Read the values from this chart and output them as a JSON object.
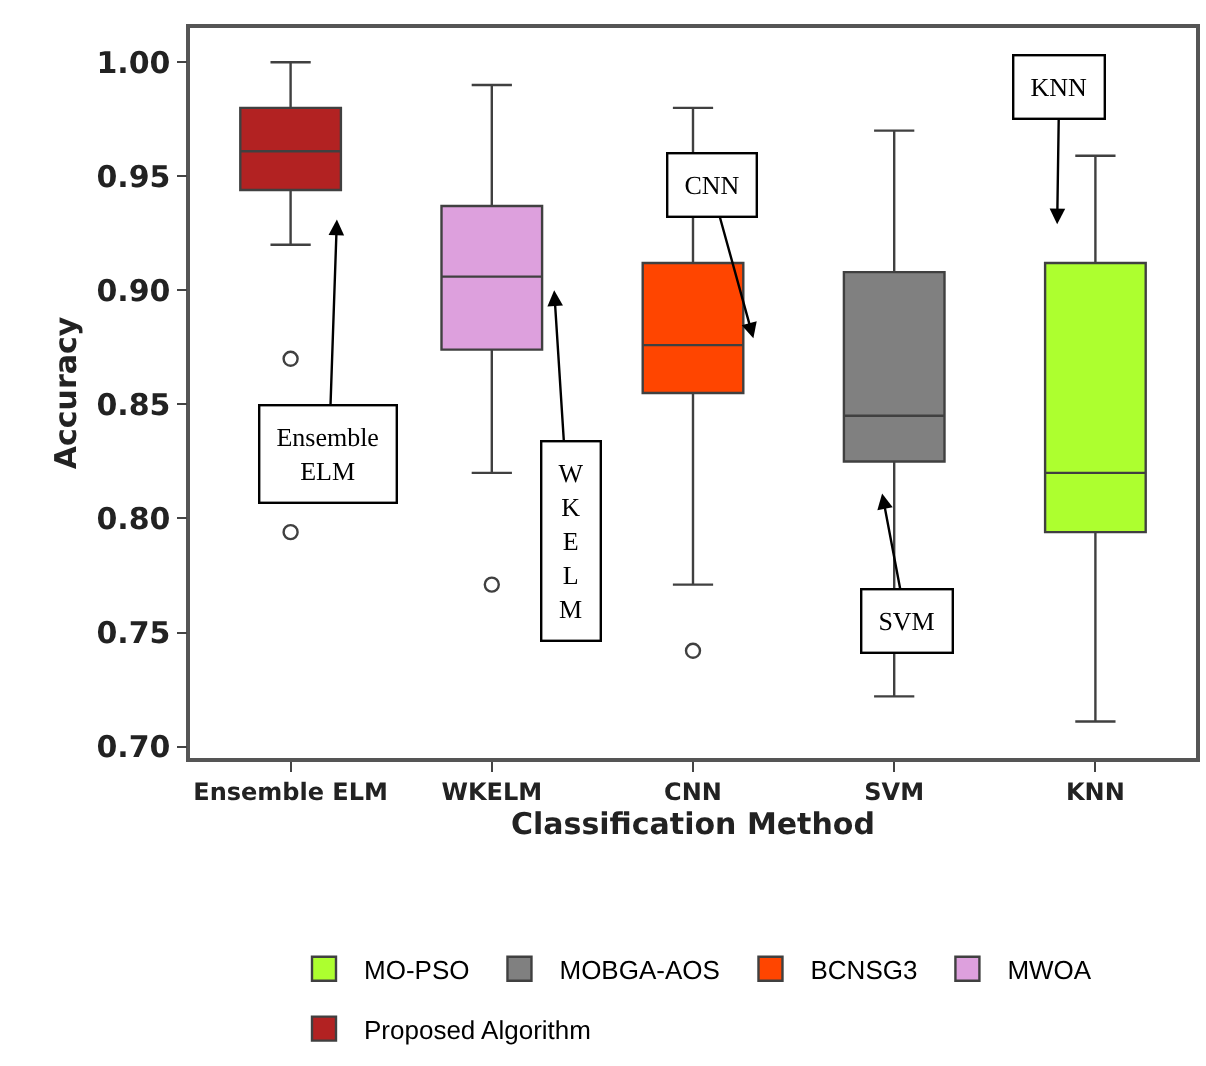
{
  "chart_data": {
    "type": "box",
    "xlabel": "Classification Method",
    "ylabel": "Accuracy",
    "categories": [
      "Ensemble ELM",
      "WKELM",
      "CNN",
      "SVM",
      "KNN"
    ],
    "ylim": [
      0.695,
      1.015
    ],
    "yticks": [
      {
        "value": 0.7,
        "label": "0.70"
      },
      {
        "value": 0.75,
        "label": "0.75"
      },
      {
        "value": 0.8,
        "label": "0.80"
      },
      {
        "value": 0.85,
        "label": "0.85"
      },
      {
        "value": 0.9,
        "label": "0.90"
      },
      {
        "value": 0.95,
        "label": "0.95"
      },
      {
        "value": 1.0,
        "label": "1.00"
      }
    ],
    "legend": "bottom",
    "series": [
      {
        "name": "MO-PSO",
        "color": "#adff2f",
        "boxes": [
          null,
          null,
          null,
          null,
          {
            "low": 0.711,
            "q1": 0.794,
            "median": 0.82,
            "q3": 0.912,
            "high": 0.959
          }
        ]
      },
      {
        "name": "MOBGA-AOS",
        "color": "#808080",
        "boxes": [
          null,
          null,
          null,
          {
            "low": 0.722,
            "q1": 0.825,
            "median": 0.845,
            "q3": 0.908,
            "high": 0.97
          },
          null
        ]
      },
      {
        "name": "BCNSG3",
        "color": "#ff4500",
        "boxes": [
          null,
          null,
          {
            "low": 0.771,
            "q1": 0.855,
            "median": 0.876,
            "q3": 0.912,
            "high": 0.98,
            "outliers": [
              0.742
            ]
          },
          null,
          null
        ]
      },
      {
        "name": "MWOA",
        "color": "#dda0dd",
        "boxes": [
          null,
          {
            "low": 0.82,
            "q1": 0.874,
            "median": 0.906,
            "q3": 0.937,
            "high": 0.99,
            "outliers": [
              0.771
            ]
          },
          null,
          null,
          null
        ]
      },
      {
        "name": "Proposed Algorithm",
        "color": "#b22222",
        "boxes": [
          {
            "low": 0.92,
            "q1": 0.944,
            "median": 0.961,
            "q3": 0.98,
            "high": 1.0,
            "outliers": [
              0.87,
              0.794
            ]
          },
          null,
          null,
          null,
          null
        ]
      }
    ],
    "annotations": [
      "Ensemble\nELM",
      "W\nK\nE\nL\nM",
      "CNN",
      "SVM",
      "KNN"
    ]
  }
}
